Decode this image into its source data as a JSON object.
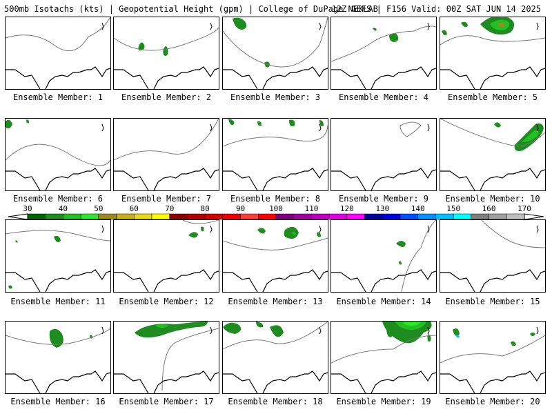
{
  "header": {
    "left_text": "500mb Isotachs (kts) | Geopotential Height (gpm) | College of DuPage NEXLAB",
    "right_text": "12Z GEFS | F156 Valid: 00Z SAT JUN 14 2025"
  },
  "members": [
    {
      "label": "Ensemble Member: 1",
      "blobs": []
    },
    {
      "label": "Ensemble Member: 2",
      "blobs": [
        "w1"
      ]
    },
    {
      "label": "Ensemble Member: 3",
      "blobs": [
        "w2"
      ]
    },
    {
      "label": "Ensemble Member: 4",
      "blobs": [
        "w3"
      ]
    },
    {
      "label": "Ensemble Member: 5",
      "blobs": [
        "jet"
      ]
    },
    {
      "label": "Ensemble Member: 6",
      "blobs": [
        "nw"
      ]
    },
    {
      "label": "Ensemble Member: 7",
      "blobs": []
    },
    {
      "label": "Ensemble Member: 8",
      "blobs": [
        "top"
      ]
    },
    {
      "label": "Ensemble Member: 9",
      "blobs": []
    },
    {
      "label": "Ensemble Member: 10",
      "blobs": [
        "ne"
      ]
    },
    {
      "label": "Ensemble Member: 11",
      "blobs": [
        "w4"
      ]
    },
    {
      "label": "Ensemble Member: 12",
      "blobs": [
        "ne2"
      ]
    },
    {
      "label": "Ensemble Member: 13",
      "blobs": [
        "mid"
      ]
    },
    {
      "label": "Ensemble Member: 14",
      "blobs": [
        "mid2"
      ]
    },
    {
      "label": "Ensemble Member: 15",
      "blobs": []
    },
    {
      "label": "Ensemble Member: 16",
      "blobs": [
        "w5"
      ]
    },
    {
      "label": "Ensemble Member: 17",
      "blobs": [
        "top2"
      ]
    },
    {
      "label": "Ensemble Member: 18",
      "blobs": [
        "top3"
      ]
    },
    {
      "label": "Ensemble Member: 19",
      "blobs": [
        "jet2"
      ]
    },
    {
      "label": "Ensemble Member: 20",
      "blobs": [
        "e2"
      ]
    }
  ],
  "colorbar": {
    "labels": [
      "30",
      "40",
      "50",
      "60",
      "70",
      "80",
      "90",
      "100",
      "110",
      "120",
      "130",
      "140",
      "150",
      "160",
      "170"
    ],
    "colors": [
      "#006400",
      "#1e8c1e",
      "#22c022",
      "#2ee62e",
      "#9c8a20",
      "#c8b01c",
      "#e8d818",
      "#ffff00",
      "#8b0000",
      "#b00000",
      "#d20000",
      "#ee0000",
      "#ff3c3c",
      "#ff0000",
      "#800080",
      "#a000a0",
      "#c000c0",
      "#e000e0",
      "#ff00ff",
      "#0000a0",
      "#0000e0",
      "#0050ff",
      "#0090ff",
      "#00c0ff",
      "#00ffff",
      "#808080",
      "#a0a0a0",
      "#c0c0c0"
    ]
  }
}
